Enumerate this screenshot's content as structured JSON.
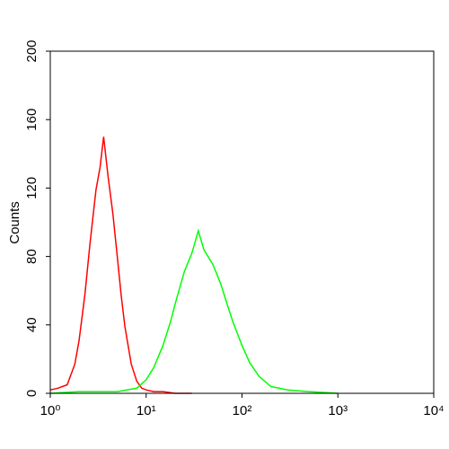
{
  "chart_data": {
    "type": "line",
    "y_label": "Counts",
    "xscale": "log",
    "xlim": [
      1,
      10000
    ],
    "ylim": [
      0,
      200
    ],
    "xticks": [
      {
        "value": 1,
        "label": "10⁰"
      },
      {
        "value": 10,
        "label": "10¹"
      },
      {
        "value": 100,
        "label": "10²"
      },
      {
        "value": 1000,
        "label": "10³"
      },
      {
        "value": 10000,
        "label": "10⁴"
      }
    ],
    "yticks": [
      0,
      40,
      80,
      120,
      160,
      200
    ],
    "series": [
      {
        "color": "#ff0000",
        "x": [
          1,
          1.2,
          1.5,
          1.8,
          2,
          2.3,
          2.6,
          3,
          3.3,
          3.6,
          4,
          4.5,
          5,
          5.5,
          6,
          7,
          8,
          9,
          10,
          12,
          15,
          20,
          30
        ],
        "values": [
          2,
          3,
          5,
          17,
          31,
          58,
          88,
          119,
          132,
          150,
          127,
          105,
          80,
          57,
          39,
          17,
          7,
          3,
          2,
          1,
          1,
          0,
          0
        ]
      },
      {
        "color": "#00ff00",
        "x": [
          1,
          2,
          5,
          8,
          10,
          12,
          15,
          18,
          20,
          25,
          30,
          35,
          40,
          50,
          60,
          70,
          80,
          100,
          120,
          150,
          200,
          300,
          500,
          1000
        ],
        "values": [
          0,
          1,
          1,
          3,
          8,
          15,
          28,
          42,
          52,
          71,
          82,
          95,
          84,
          75,
          64,
          52,
          42,
          28,
          18,
          10,
          4,
          2,
          1,
          0
        ]
      }
    ]
  }
}
